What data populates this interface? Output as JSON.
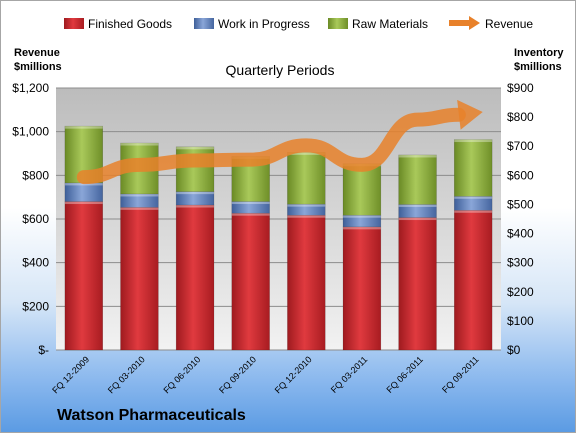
{
  "chart_data": {
    "type": "bar",
    "stacked": true,
    "title": "Quarterly Periods",
    "company": "Watson Pharmaceuticals",
    "categories": [
      "FQ 12-2009",
      "FQ 03-2010",
      "FQ 06-2010",
      "FQ 09-2010",
      "FQ 12-2010",
      "FQ 03-2011",
      "FQ 06-2011",
      "FQ 09-2011"
    ],
    "left_axis": {
      "label_line1": "Revenue",
      "label_line2": "$millions",
      "ylim": [
        0,
        1200
      ],
      "ticks": [
        0,
        200,
        400,
        600,
        800,
        1000,
        1200
      ],
      "tick_labels": [
        "$-",
        "$200",
        "$400",
        "$600",
        "$800",
        "$1,000",
        "$1,200"
      ]
    },
    "right_axis": {
      "label_line1": "Inventory",
      "label_line2": "$millions",
      "ylim": [
        0,
        900
      ],
      "ticks": [
        0,
        100,
        200,
        300,
        400,
        500,
        600,
        700,
        800,
        900
      ],
      "tick_labels": [
        "$0",
        "$100",
        "$200",
        "$300",
        "$400",
        "$500",
        "$600",
        "$700",
        "$800",
        "$900"
      ]
    },
    "series": [
      {
        "name": "Finished Goods",
        "axis": "right",
        "kind": "bar",
        "color": "#c8232a",
        "values": [
          510,
          490,
          498,
          470,
          463,
          423,
          455,
          480
        ]
      },
      {
        "name": "Work in Progress",
        "axis": "right",
        "kind": "bar",
        "color": "#5b7fbf",
        "values": [
          64,
          46,
          46,
          40,
          38,
          40,
          45,
          48
        ]
      },
      {
        "name": "Raw Materials",
        "axis": "right",
        "kind": "bar",
        "color": "#8cab3a",
        "values": [
          195,
          175,
          154,
          155,
          178,
          177,
          170,
          195
        ]
      },
      {
        "name": "Revenue",
        "axis": "left",
        "kind": "line",
        "color": "#e8812a",
        "values": [
          792,
          848,
          868,
          872,
          937,
          848,
          1055,
          1085
        ]
      }
    ],
    "grid": true,
    "legend_position": "top"
  }
}
